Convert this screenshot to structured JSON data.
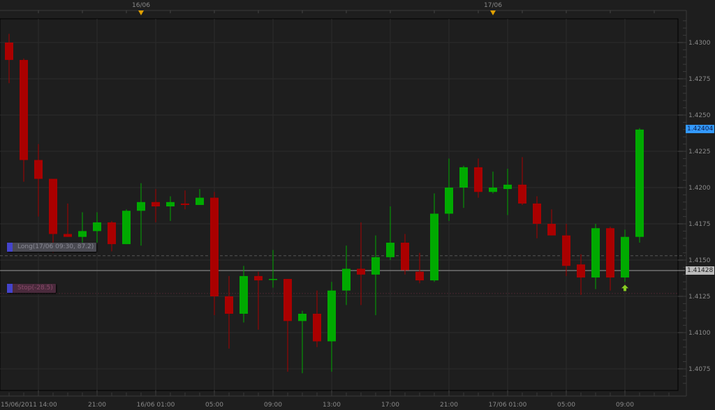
{
  "chart_data": {
    "type": "candlestick",
    "interval": "1 hour",
    "x_tick_labels": [
      "15/06/2011 14:00",
      "21:00",
      "16/06 01:00",
      "05:00",
      "09:00",
      "13:00",
      "17:00",
      "21:00",
      "17/06 01:00",
      "05:00",
      "09:00"
    ],
    "day_markers": [
      "16/06",
      "17/06"
    ],
    "y_tick_labels": [
      "1.4300",
      "1.4275",
      "1.4250",
      "1.4225",
      "1.4200",
      "1.4175",
      "1.4150",
      "1.4125",
      "1.4100",
      "1.4075"
    ],
    "ylim": [
      1.4063,
      1.4316
    ],
    "grid": true,
    "current_price_label": "1.42404",
    "last_line_label": "1.41428",
    "last_line_value": 1.41428,
    "long_level": 1.4153,
    "stop_level": 1.4127,
    "candles": [
      {
        "t": "15/06 15:00",
        "o": 1.43,
        "h": 1.4306,
        "l": 1.4272,
        "c": 1.4288
      },
      {
        "t": "15/06 16:00",
        "o": 1.4288,
        "h": 1.4289,
        "l": 1.4204,
        "c": 1.4219
      },
      {
        "t": "15/06 17:00",
        "o": 1.4219,
        "h": 1.423,
        "l": 1.418,
        "c": 1.4206
      },
      {
        "t": "15/06 18:00",
        "o": 1.4206,
        "h": 1.4206,
        "l": 1.4155,
        "c": 1.4168
      },
      {
        "t": "15/06 19:00",
        "o": 1.4168,
        "h": 1.4189,
        "l": 1.4166,
        "c": 1.4166
      },
      {
        "t": "15/06 20:00",
        "o": 1.4166,
        "h": 1.4183,
        "l": 1.4161,
        "c": 1.417
      },
      {
        "t": "15/06 21:00",
        "o": 1.417,
        "h": 1.4183,
        "l": 1.4162,
        "c": 1.4176
      },
      {
        "t": "15/06 22:00",
        "o": 1.4176,
        "h": 1.4177,
        "l": 1.4156,
        "c": 1.4161
      },
      {
        "t": "15/06 23:00",
        "o": 1.4161,
        "h": 1.4185,
        "l": 1.4161,
        "c": 1.4184
      },
      {
        "t": "16/06 00:00",
        "o": 1.4184,
        "h": 1.4203,
        "l": 1.416,
        "c": 1.419
      },
      {
        "t": "16/06 01:00",
        "o": 1.419,
        "h": 1.4199,
        "l": 1.4176,
        "c": 1.4187
      },
      {
        "t": "16/06 02:00",
        "o": 1.4187,
        "h": 1.4194,
        "l": 1.4177,
        "c": 1.419
      },
      {
        "t": "16/06 03:00",
        "o": 1.4189,
        "h": 1.4198,
        "l": 1.4185,
        "c": 1.4188
      },
      {
        "t": "16/06 04:00",
        "o": 1.4188,
        "h": 1.4199,
        "l": 1.4188,
        "c": 1.4193
      },
      {
        "t": "16/06 05:00",
        "o": 1.4193,
        "h": 1.4197,
        "l": 1.4112,
        "c": 1.4125
      },
      {
        "t": "16/06 06:00",
        "o": 1.4125,
        "h": 1.4139,
        "l": 1.4089,
        "c": 1.4113
      },
      {
        "t": "16/06 07:00",
        "o": 1.4113,
        "h": 1.4146,
        "l": 1.4107,
        "c": 1.4139
      },
      {
        "t": "16/06 08:00",
        "o": 1.4139,
        "h": 1.4142,
        "l": 1.4102,
        "c": 1.4136
      },
      {
        "t": "16/06 09:00",
        "o": 1.4137,
        "h": 1.4157,
        "l": 1.4131,
        "c": 1.4137
      },
      {
        "t": "16/06 10:00",
        "o": 1.4137,
        "h": 1.4137,
        "l": 1.4073,
        "c": 1.4108
      },
      {
        "t": "16/06 11:00",
        "o": 1.4108,
        "h": 1.4115,
        "l": 1.4072,
        "c": 1.4113
      },
      {
        "t": "16/06 12:00",
        "o": 1.4113,
        "h": 1.4129,
        "l": 1.409,
        "c": 1.4094
      },
      {
        "t": "16/06 13:00",
        "o": 1.4094,
        "h": 1.4135,
        "l": 1.4073,
        "c": 1.4129
      },
      {
        "t": "16/06 14:00",
        "o": 1.4129,
        "h": 1.416,
        "l": 1.4119,
        "c": 1.4144
      },
      {
        "t": "16/06 15:00",
        "o": 1.4144,
        "h": 1.4176,
        "l": 1.4119,
        "c": 1.414
      },
      {
        "t": "16/06 16:00",
        "o": 1.414,
        "h": 1.4167,
        "l": 1.4112,
        "c": 1.4152
      },
      {
        "t": "16/06 17:00",
        "o": 1.4152,
        "h": 1.4187,
        "l": 1.415,
        "c": 1.4162
      },
      {
        "t": "16/06 18:00",
        "o": 1.4162,
        "h": 1.4168,
        "l": 1.414,
        "c": 1.4143
      },
      {
        "t": "16/06 19:00",
        "o": 1.4142,
        "h": 1.4155,
        "l": 1.4134,
        "c": 1.4136
      },
      {
        "t": "16/06 20:00",
        "o": 1.4136,
        "h": 1.4196,
        "l": 1.4135,
        "c": 1.4182
      },
      {
        "t": "16/06 21:00",
        "o": 1.4182,
        "h": 1.422,
        "l": 1.4177,
        "c": 1.42
      },
      {
        "t": "16/06 22:00",
        "o": 1.42,
        "h": 1.4215,
        "l": 1.4186,
        "c": 1.4214
      },
      {
        "t": "16/06 23:00",
        "o": 1.4214,
        "h": 1.422,
        "l": 1.4193,
        "c": 1.4197
      },
      {
        "t": "17/06 00:00",
        "o": 1.4197,
        "h": 1.4211,
        "l": 1.4196,
        "c": 1.42
      },
      {
        "t": "17/06 01:00",
        "o": 1.4199,
        "h": 1.4213,
        "l": 1.4181,
        "c": 1.4202
      },
      {
        "t": "17/06 02:00",
        "o": 1.4202,
        "h": 1.4221,
        "l": 1.4188,
        "c": 1.4189
      },
      {
        "t": "17/06 03:00",
        "o": 1.4189,
        "h": 1.4194,
        "l": 1.4165,
        "c": 1.4175
      },
      {
        "t": "17/06 04:00",
        "o": 1.4175,
        "h": 1.4185,
        "l": 1.4167,
        "c": 1.4167
      },
      {
        "t": "17/06 05:00",
        "o": 1.4167,
        "h": 1.4175,
        "l": 1.4139,
        "c": 1.4146
      },
      {
        "t": "17/06 06:00",
        "o": 1.4147,
        "h": 1.4154,
        "l": 1.4126,
        "c": 1.4138
      },
      {
        "t": "17/06 07:00",
        "o": 1.4138,
        "h": 1.4175,
        "l": 1.413,
        "c": 1.4172
      },
      {
        "t": "17/06 08:00",
        "o": 1.4172,
        "h": 1.4173,
        "l": 1.4129,
        "c": 1.4138
      },
      {
        "t": "17/06 09:00",
        "o": 1.4138,
        "h": 1.4171,
        "l": 1.4135,
        "c": 1.4166
      },
      {
        "t": "17/06 10:00",
        "o": 1.4166,
        "h": 1.4241,
        "l": 1.4162,
        "c": 1.424
      }
    ],
    "colors": {
      "up": "#00aa00",
      "down": "#aa0000",
      "background": "#1e1e1e",
      "grid": "#2c2c2c",
      "current_price": "#3399ff",
      "marker": "#e0a000",
      "buy_arrow": "#88cc22"
    }
  },
  "annotations": {
    "long_label": "Long(17/06 09:30, 87.2)",
    "stop_label": "Stop(-28.5)"
  }
}
